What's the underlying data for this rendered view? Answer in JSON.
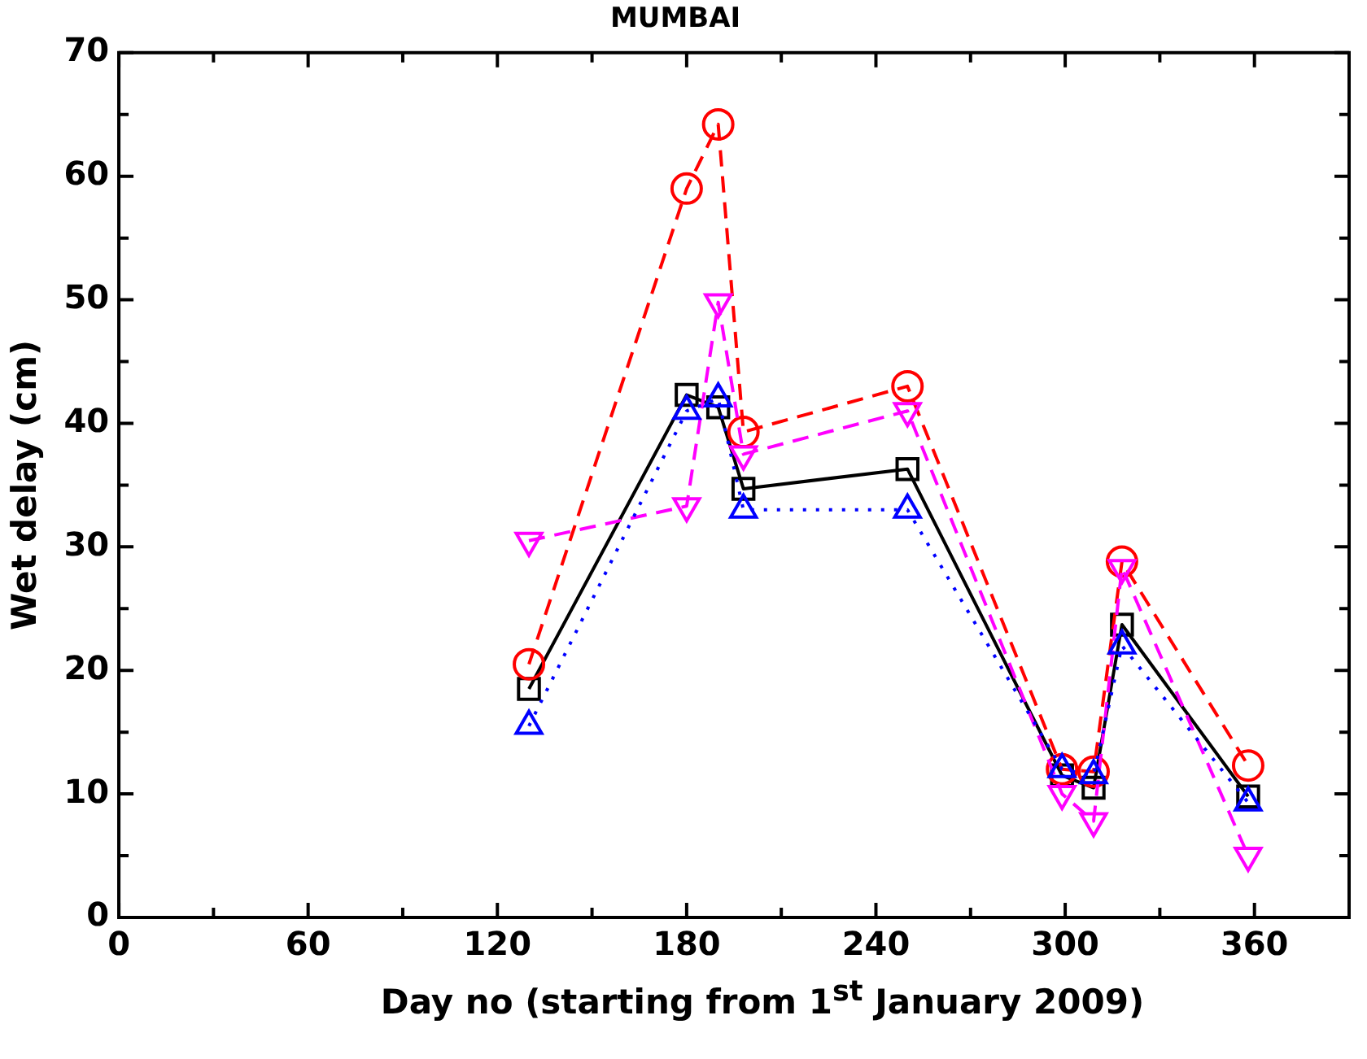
{
  "chart_data": {
    "type": "line",
    "title": "MUMBAI",
    "xlabel": "Day no (starting from 1$^{st}$ January 2009)",
    "ylabel": "Wet delay (cm)",
    "x": [
      130,
      180,
      190,
      198,
      250,
      299,
      309,
      318,
      358
    ],
    "series": [
      {
        "color": "#000000",
        "marker": "square",
        "line_style": "solid",
        "values": [
          18.5,
          42.3,
          41.3,
          34.7,
          36.3,
          11.5,
          10.5,
          23.7,
          9.8
        ]
      },
      {
        "color": "#ff0000",
        "marker": "circle",
        "line_style": "dashed",
        "values": [
          20.5,
          59,
          64.2,
          39.3,
          43,
          12,
          11.8,
          28.8,
          12.3
        ]
      },
      {
        "color": "#ff00ff",
        "marker": "triangle_down",
        "line_style": "dashed",
        "values": [
          30.5,
          33.3,
          49.8,
          37.5,
          41,
          10,
          7.8,
          28.3,
          5
        ]
      },
      {
        "color": "#0000ff",
        "marker": "triangle",
        "line_style": "dotted",
        "values": [
          15.5,
          41,
          42,
          33,
          33,
          12,
          11.5,
          22,
          9.3
        ]
      }
    ],
    "xlim": [
      0,
      390
    ],
    "xticks": [
      0,
      {
        "value": 30,
        "label": null
      },
      60,
      {
        "value": 90,
        "label": null
      },
      120,
      {
        "value": 150,
        "label": null
      },
      180,
      {
        "value": 210,
        "label": null
      },
      240,
      {
        "value": 270,
        "label": null
      },
      300,
      {
        "value": 330,
        "label": null
      },
      360
    ],
    "ylim": [
      0,
      70
    ],
    "yticks": [
      0,
      {
        "value": 5,
        "label": null
      },
      10,
      {
        "value": 15,
        "label": null
      },
      20,
      {
        "value": 25,
        "label": null
      },
      30,
      {
        "value": 35,
        "label": null
      },
      40,
      {
        "value": 45,
        "label": null
      },
      50,
      {
        "value": 55,
        "label": null
      },
      60,
      {
        "value": 65,
        "label": null
      },
      70
    ],
    "grid": false,
    "legend": false
  }
}
